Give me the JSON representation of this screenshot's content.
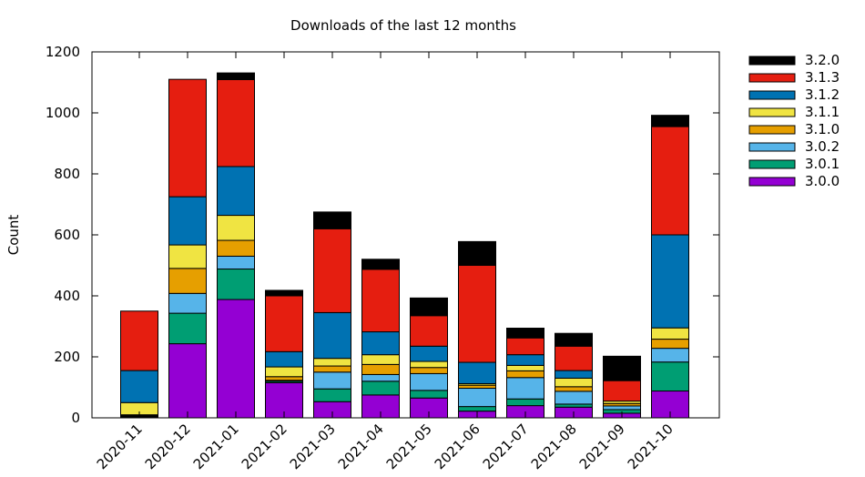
{
  "chart_data": {
    "type": "bar",
    "stacked": true,
    "title": "Downloads of the last 12 months",
    "xlabel": "",
    "ylabel": "Count",
    "ylim": [
      0,
      1200
    ],
    "yticks": [
      0,
      200,
      400,
      600,
      800,
      1000,
      1200
    ],
    "grid": false,
    "legend_position": "outside-right",
    "categories": [
      "2020-11",
      "2020-12",
      "2021-01",
      "2021-02",
      "2021-03",
      "2021-04",
      "2021-05",
      "2021-06",
      "2021-07",
      "2021-08",
      "2021-09",
      "2021-10"
    ],
    "series": [
      {
        "name": "3.0.0",
        "color": "#9400d3",
        "values": [
          3,
          243,
          388,
          115,
          53,
          75,
          65,
          22,
          40,
          35,
          15,
          88
        ]
      },
      {
        "name": "3.0.1",
        "color": "#009e73",
        "values": [
          2,
          100,
          100,
          5,
          42,
          45,
          25,
          15,
          22,
          10,
          12,
          95
        ]
      },
      {
        "name": "3.0.2",
        "color": "#56b4e9",
        "values": [
          2,
          65,
          42,
          3,
          55,
          22,
          55,
          60,
          70,
          42,
          12,
          45
        ]
      },
      {
        "name": "3.1.0",
        "color": "#e69f00",
        "values": [
          3,
          82,
          52,
          12,
          20,
          33,
          20,
          10,
          22,
          15,
          8,
          30
        ]
      },
      {
        "name": "3.1.1",
        "color": "#f0e442",
        "values": [
          40,
          77,
          82,
          32,
          25,
          32,
          20,
          5,
          18,
          28,
          8,
          37
        ]
      },
      {
        "name": "3.1.2",
        "color": "#0072b2",
        "values": [
          105,
          158,
          160,
          50,
          150,
          75,
          50,
          70,
          35,
          25,
          0,
          305
        ]
      },
      {
        "name": "3.1.3",
        "color": "#e51e10",
        "values": [
          195,
          385,
          285,
          183,
          275,
          205,
          100,
          318,
          55,
          80,
          67,
          355
        ]
      },
      {
        "name": "3.2.0",
        "color": "#000000",
        "values": [
          0,
          0,
          22,
          18,
          55,
          33,
          58,
          78,
          32,
          42,
          80,
          37
        ]
      }
    ]
  }
}
